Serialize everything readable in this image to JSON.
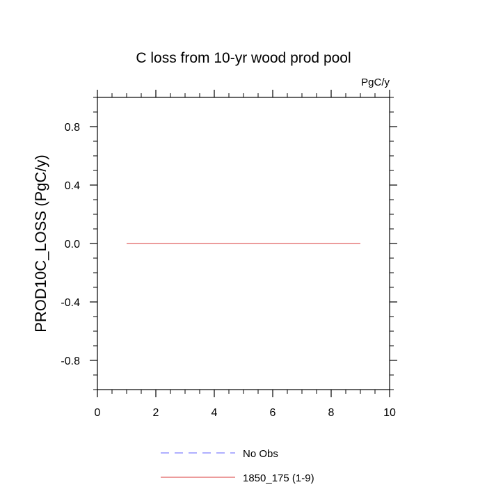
{
  "chart_data": {
    "type": "line",
    "title": "C loss from 10-yr wood prod pool",
    "units": "PgC/y",
    "xlabel": "",
    "ylabel": "PROD10C_LOSS  (PgC/y)",
    "xlim": [
      0,
      10
    ],
    "ylim": [
      -1,
      1
    ],
    "xticks": [
      0,
      2,
      4,
      6,
      8,
      10
    ],
    "xtick_labels": [
      "0",
      "2",
      "4",
      "6",
      "8",
      "10"
    ],
    "yticks": [
      -0.8,
      -0.4,
      0.0,
      0.4,
      0.8
    ],
    "ytick_labels": [
      "-0.8",
      "-0.4",
      "0.0",
      "0.4",
      "0.8"
    ],
    "grid": false,
    "legend_position": "bottom",
    "series": [
      {
        "name": "No Obs",
        "style": "dashed",
        "color": "#8080ff",
        "x": [],
        "y": []
      },
      {
        "name": "1850_175 (1-9)",
        "style": "solid",
        "color": "#e06060",
        "x": [
          1,
          2,
          3,
          4,
          5,
          6,
          7,
          8,
          9
        ],
        "y": [
          0,
          0,
          0,
          0,
          0,
          0,
          0,
          0,
          0
        ]
      }
    ]
  }
}
